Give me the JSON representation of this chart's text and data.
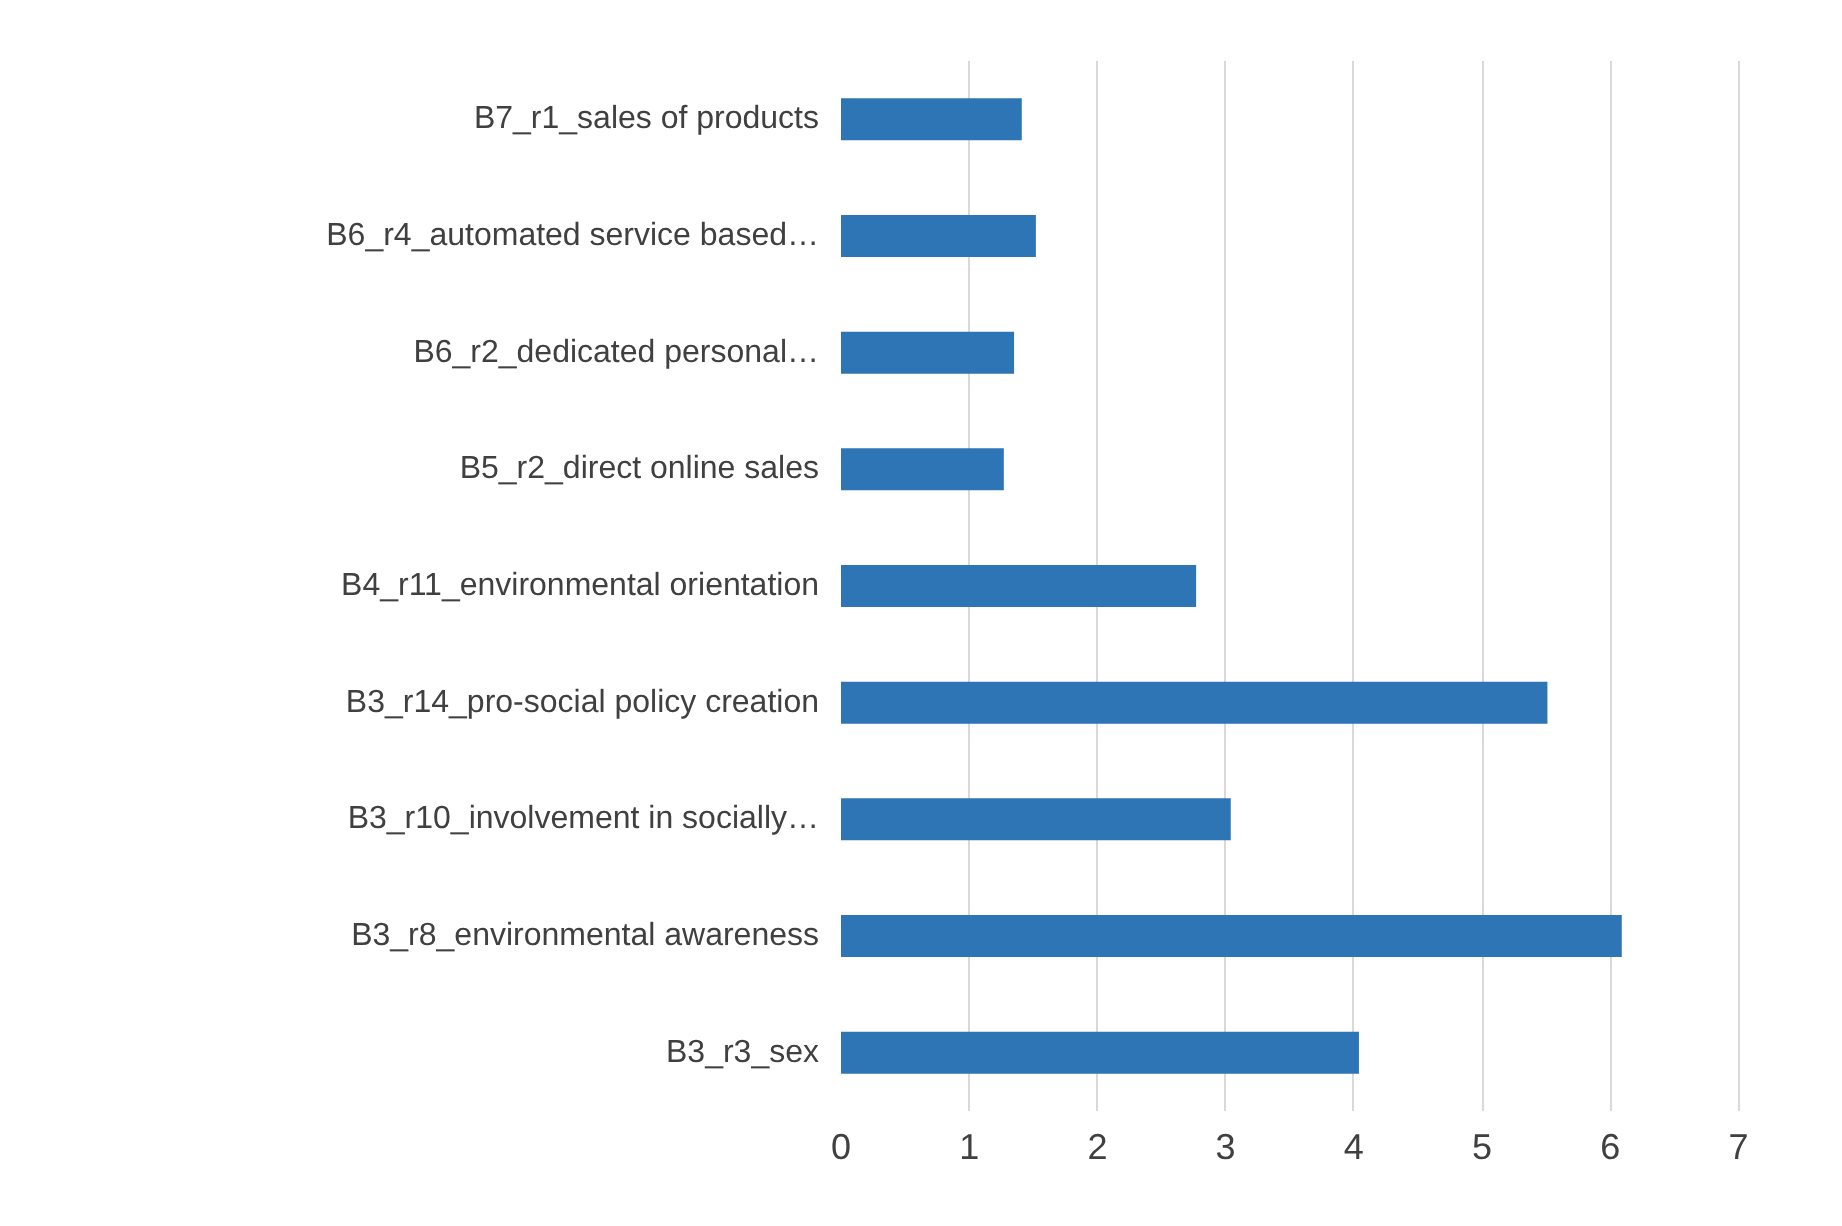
{
  "chart_data": {
    "type": "bar",
    "orientation": "horizontal",
    "categories": [
      "B7_r1_sales of products",
      "B6_r4_automated service based…",
      "B6_r2_dedicated personal…",
      "B5_r2_direct online sales",
      "B4_r11_environmental orientation",
      "B3_r14_pro-social policy creation",
      "B3_r10_involvement in socially…",
      "B3_r8_environmental awareness",
      "B3_r3_sex"
    ],
    "values": [
      1.41,
      1.52,
      1.35,
      1.27,
      2.77,
      5.51,
      3.04,
      6.09,
      4.04
    ],
    "color": "#2e75b6",
    "xlim": [
      0,
      7
    ],
    "xticks": [
      0,
      1,
      2,
      3,
      4,
      5,
      6,
      7
    ],
    "grid": "x"
  }
}
